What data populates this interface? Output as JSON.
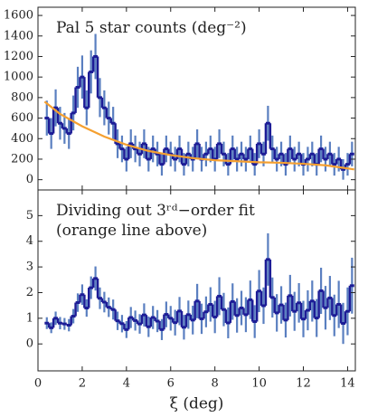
{
  "chart_data": [
    {
      "type": "step",
      "title": "Pal 5 star counts (deg⁻²)",
      "x": [
        0.4,
        0.6,
        0.8,
        1.0,
        1.2,
        1.4,
        1.6,
        1.8,
        2.0,
        2.2,
        2.4,
        2.6,
        2.8,
        3.0,
        3.2,
        3.4,
        3.6,
        3.8,
        4.0,
        4.2,
        4.4,
        4.6,
        4.8,
        5.0,
        5.2,
        5.4,
        5.6,
        5.8,
        6.0,
        6.2,
        6.4,
        6.6,
        6.8,
        7.0,
        7.2,
        7.4,
        7.6,
        7.8,
        8.0,
        8.2,
        8.4,
        8.6,
        8.8,
        9.0,
        9.2,
        9.4,
        9.6,
        9.8,
        10.0,
        10.2,
        10.4,
        10.6,
        10.8,
        11.0,
        11.2,
        11.4,
        11.6,
        11.8,
        12.0,
        12.2,
        12.4,
        12.6,
        12.8,
        13.0,
        13.2,
        13.4,
        13.6,
        13.8,
        14.0,
        14.2
      ],
      "values": [
        600,
        450,
        700,
        550,
        500,
        450,
        650,
        900,
        1000,
        700,
        1050,
        1200,
        800,
        700,
        600,
        550,
        350,
        300,
        200,
        350,
        300,
        250,
        350,
        200,
        300,
        250,
        150,
        300,
        250,
        200,
        300,
        150,
        250,
        200,
        350,
        200,
        250,
        300,
        200,
        350,
        250,
        150,
        300,
        200,
        250,
        200,
        300,
        150,
        350,
        250,
        550,
        300,
        200,
        250,
        150,
        300,
        200,
        250,
        150,
        200,
        250,
        150,
        300,
        200,
        250,
        150,
        200,
        100,
        150,
        250
      ],
      "errors": [
        170,
        150,
        180,
        160,
        150,
        150,
        170,
        200,
        210,
        170,
        210,
        220,
        190,
        170,
        160,
        160,
        140,
        130,
        120,
        140,
        130,
        120,
        140,
        120,
        130,
        120,
        110,
        130,
        120,
        120,
        130,
        110,
        120,
        120,
        140,
        120,
        120,
        130,
        120,
        140,
        120,
        110,
        130,
        120,
        120,
        120,
        130,
        110,
        140,
        120,
        170,
        130,
        120,
        120,
        110,
        130,
        120,
        120,
        110,
        120,
        120,
        110,
        130,
        120,
        120,
        110,
        120,
        100,
        110,
        120
      ],
      "color": "#1c1c96",
      "error_color": "#5a7fc0",
      "fit": {
        "x": [
          0.3,
          1,
          2,
          3,
          4,
          5,
          6,
          7,
          8,
          9,
          10,
          11,
          12,
          13,
          14,
          14.3
        ],
        "values": [
          760,
          640,
          520,
          420,
          340,
          280,
          240,
          210,
          190,
          180,
          170,
          165,
          155,
          140,
          110,
          100
        ],
        "color": "#f5a030"
      },
      "xlim": [
        0,
        14.35
      ],
      "xticks": [
        0,
        2,
        4,
        6,
        8,
        10,
        12,
        14
      ],
      "ylim": [
        -100,
        1680
      ],
      "yticks": [
        0,
        200,
        400,
        600,
        800,
        1000,
        1200,
        1400,
        1600
      ]
    },
    {
      "type": "step",
      "title": [
        "Dividing out 3ʳᵈ−order fit",
        "(orange line above)"
      ],
      "xlabel": "ξ (deg)",
      "x": [
        0.4,
        0.6,
        0.8,
        1.0,
        1.2,
        1.4,
        1.6,
        1.8,
        2.0,
        2.2,
        2.4,
        2.6,
        2.8,
        3.0,
        3.2,
        3.4,
        3.6,
        3.8,
        4.0,
        4.2,
        4.4,
        4.6,
        4.8,
        5.0,
        5.2,
        5.4,
        5.6,
        5.8,
        6.0,
        6.2,
        6.4,
        6.6,
        6.8,
        7.0,
        7.2,
        7.4,
        7.6,
        7.8,
        8.0,
        8.2,
        8.4,
        8.6,
        8.8,
        9.0,
        9.2,
        9.4,
        9.6,
        9.8,
        10.0,
        10.2,
        10.4,
        10.6,
        10.8,
        11.0,
        11.2,
        11.4,
        11.6,
        11.8,
        12.0,
        12.2,
        12.4,
        12.6,
        12.8,
        13.0,
        13.2,
        13.4,
        13.6,
        13.8,
        14.0,
        14.2
      ],
      "values": [
        0.81,
        0.63,
        1.0,
        0.81,
        0.78,
        0.73,
        1.08,
        1.61,
        1.92,
        1.4,
        2.19,
        2.55,
        1.78,
        1.63,
        1.43,
        1.34,
        0.9,
        0.79,
        0.56,
        1.03,
        0.91,
        0.78,
        1.13,
        0.67,
        1.03,
        0.89,
        0.56,
        1.15,
        1.0,
        0.83,
        1.28,
        0.65,
        1.14,
        0.93,
        1.67,
        0.98,
        1.25,
        1.54,
        1.05,
        1.86,
        1.34,
        0.82,
        1.65,
        1.11,
        1.4,
        1.14,
        1.72,
        0.87,
        2.06,
        1.49,
        3.29,
        1.81,
        1.21,
        1.52,
        0.93,
        1.88,
        1.27,
        1.6,
        0.97,
        1.31,
        1.67,
        1.01,
        2.07,
        1.41,
        1.79,
        1.11,
        1.54,
        0.8,
        1.27,
        2.27
      ],
      "errors": [
        0.23,
        0.21,
        0.26,
        0.24,
        0.23,
        0.24,
        0.28,
        0.36,
        0.4,
        0.34,
        0.44,
        0.47,
        0.42,
        0.4,
        0.38,
        0.39,
        0.36,
        0.34,
        0.33,
        0.41,
        0.39,
        0.38,
        0.45,
        0.4,
        0.45,
        0.43,
        0.41,
        0.5,
        0.48,
        0.5,
        0.55,
        0.48,
        0.55,
        0.56,
        0.67,
        0.59,
        0.6,
        0.67,
        0.63,
        0.74,
        0.65,
        0.6,
        0.71,
        0.67,
        0.67,
        0.68,
        0.75,
        0.64,
        0.82,
        0.71,
        1.02,
        0.78,
        0.73,
        0.73,
        0.68,
        0.81,
        0.76,
        0.77,
        0.71,
        0.78,
        0.8,
        0.74,
        0.9,
        0.85,
        0.86,
        0.81,
        0.92,
        0.8,
        0.93,
        1.09
      ],
      "color": "#1c1c96",
      "error_color": "#5a7fc0",
      "xlim": [
        0,
        14.35
      ],
      "xticks": [
        0,
        2,
        4,
        6,
        8,
        10,
        12,
        14
      ],
      "ylim": [
        -1.05,
        6.0
      ],
      "yticks": [
        0,
        1,
        2,
        3,
        4,
        5
      ]
    }
  ]
}
